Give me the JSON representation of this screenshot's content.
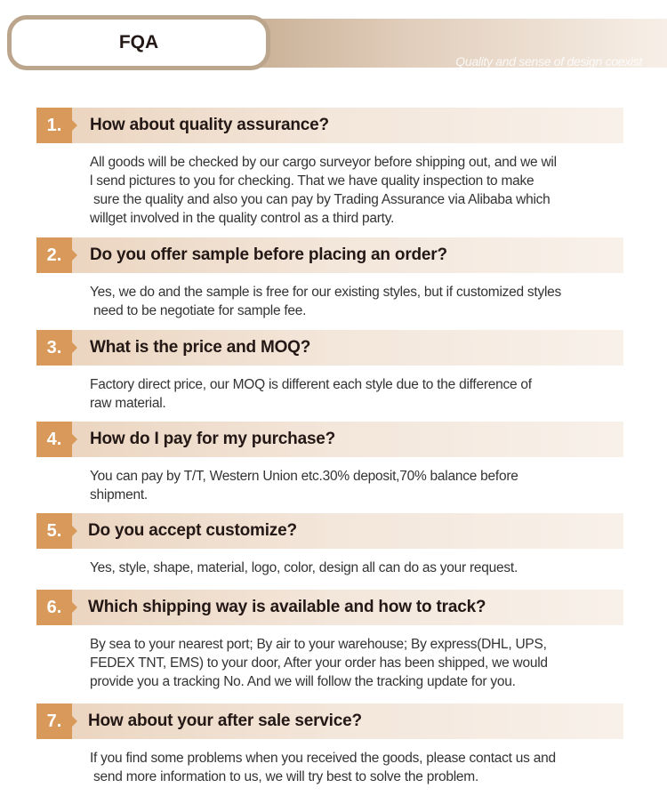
{
  "header": {
    "title": "FQA",
    "tagline": "Quality and sense of design coexist"
  },
  "colors": {
    "accent": "#d9995a",
    "pill_border": "#bca58d"
  },
  "faq": [
    {
      "num": "1.",
      "question": "How about quality assurance?",
      "answer": [
        "All goods will be checked by our cargo surveyor before shipping out, and we wil",
        "l send pictures to you for checking. That we have quality inspection to make",
        " sure the quality and also you can pay by Trading Assurance via Alibaba which",
        "willget involved in the quality control as a third party."
      ]
    },
    {
      "num": "2.",
      "question": "Do you offer sample before placing an order?",
      "answer": [
        "Yes, we do and the sample is free for our existing styles, but if customized styles",
        " need to be negotiate for sample fee."
      ]
    },
    {
      "num": "3.",
      "question": "What is the price and MOQ?",
      "answer": [
        "Factory direct price, our MOQ is different each style due to the difference of",
        "raw material."
      ]
    },
    {
      "num": "4.",
      "question": "How do I pay for my purchase?",
      "answer": [
        "You can pay by T/T, Western Union etc.30% deposit,70% balance before",
        "shipment."
      ]
    },
    {
      "num": "5.",
      "question": "Do you accept customize?",
      "answer": [
        "Yes, style, shape, material, logo, color, design all can do as your request."
      ]
    },
    {
      "num": "6.",
      "question": "Which shipping way is available and how to track?",
      "answer": [
        "By sea to your nearest port; By air to your warehouse; By express(DHL, UPS,",
        "FEDEX TNT, EMS) to your door, After your order has been shipped, we would",
        "provide you a tracking No. And we will follow the tracking update for you."
      ]
    },
    {
      "num": "7.",
      "question": "How about your after sale service?",
      "answer": [
        "If you find some problems when you received the goods, please contact us and",
        " send more information to us, we will try best to solve the problem."
      ]
    }
  ]
}
